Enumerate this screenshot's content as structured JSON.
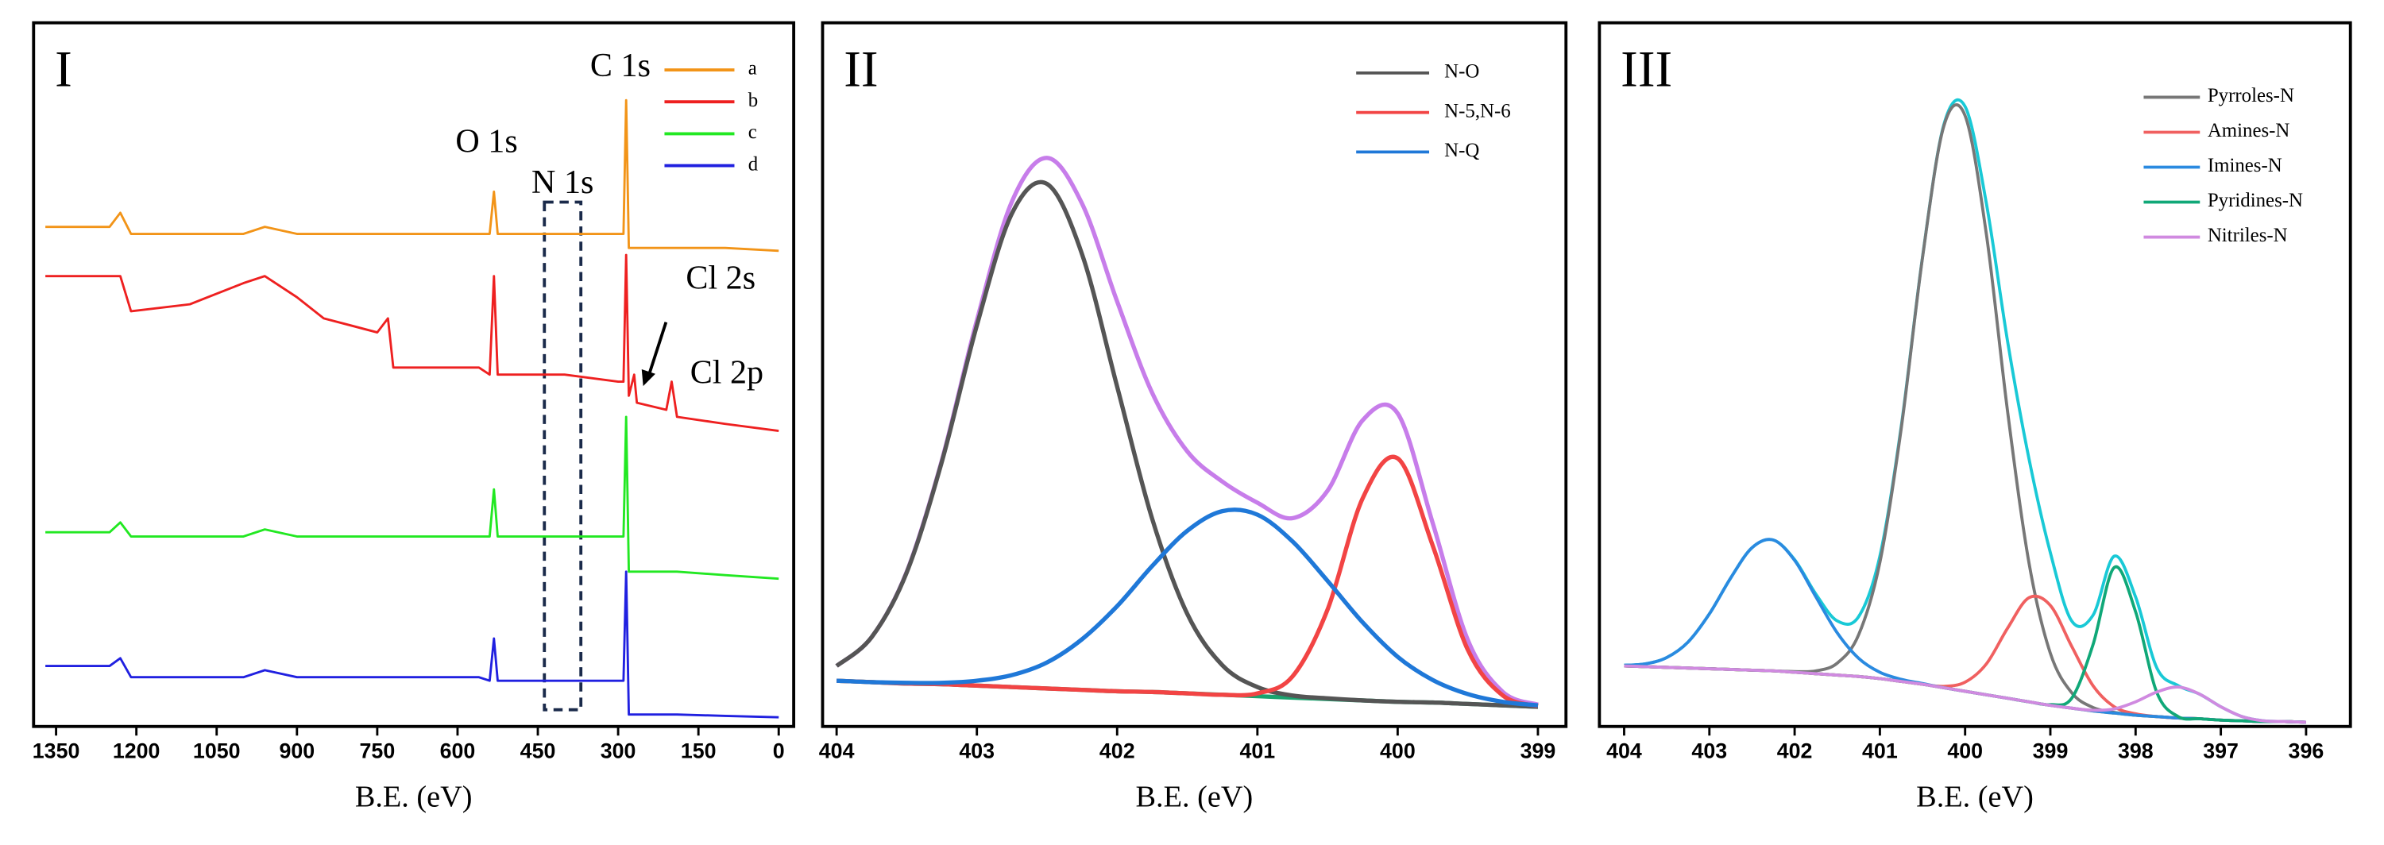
{
  "chart_data": [
    {
      "type": "line",
      "label": "I",
      "xlabel": "B.E. (eV)",
      "annotations": [
        "C 1s",
        "O 1s",
        "N 1s",
        "Cl 2s",
        "Cl 2p"
      ],
      "xlim": [
        1392,
        -28
      ],
      "xticks": [
        1350,
        1200,
        1050,
        900,
        750,
        600,
        450,
        300,
        150,
        0
      ],
      "ylim": [
        0,
        100
      ],
      "x": [
        1370,
        1250,
        1230,
        1210,
        1100,
        1000,
        960,
        900,
        850,
        800,
        750,
        730,
        720,
        650,
        560,
        540,
        532,
        525,
        400,
        300,
        290,
        285,
        280,
        270,
        265,
        210,
        200,
        190,
        100,
        0
      ],
      "series": [
        {
          "name": "a",
          "color": "#f29418",
          "values": [
            71,
            71,
            73,
            70,
            70,
            70,
            71,
            70,
            70,
            70,
            70,
            70,
            70,
            70,
            70,
            70,
            76,
            70,
            70,
            70,
            70,
            89,
            68,
            68,
            68,
            68,
            68,
            68,
            68,
            67.6
          ]
        },
        {
          "name": "b",
          "color": "#ee2020",
          "values": [
            64,
            64,
            64,
            59,
            60,
            63,
            64,
            61,
            58,
            57,
            56,
            58,
            51,
            51,
            51,
            50,
            64,
            50,
            50,
            49,
            49,
            67,
            47,
            50,
            46,
            45,
            49,
            44,
            43,
            42
          ]
        },
        {
          "name": "c",
          "color": "#22e822",
          "values": [
            27.6,
            27.6,
            29,
            27,
            27,
            27,
            28,
            27,
            27,
            27,
            27,
            27,
            27,
            27,
            27,
            27,
            33.7,
            27,
            27,
            27,
            27,
            44,
            22,
            22,
            22,
            22,
            22,
            22,
            21.5,
            21
          ]
        },
        {
          "name": "d",
          "color": "#2020e0",
          "values": [
            8.6,
            8.6,
            9.7,
            7,
            7,
            7,
            8,
            7,
            7,
            7,
            7,
            7,
            7,
            7,
            7,
            6.5,
            12.5,
            6.5,
            6.5,
            6.5,
            6.5,
            22,
            1.7,
            1.7,
            1.7,
            1.7,
            1.7,
            1.7,
            1.5,
            1.3
          ]
        }
      ]
    },
    {
      "type": "line",
      "label": "II",
      "xlabel": "B.E. (eV)",
      "xlim": [
        404.1,
        398.8
      ],
      "xticks": [
        404,
        403,
        402,
        401,
        400,
        399
      ],
      "ylim": [
        0,
        100
      ],
      "x": [
        404,
        403.75,
        403.5,
        403.25,
        403,
        402.75,
        402.5,
        402.25,
        402,
        401.75,
        401.5,
        401.25,
        401,
        400.75,
        400.5,
        400.25,
        400,
        399.75,
        399.5,
        399.25,
        399
      ],
      "series": [
        {
          "color": "#c77dea",
          "values": [
            8.6,
            12.7,
            22.0,
            37.8,
            57.7,
            74.6,
            80.8,
            74.3,
            60.4,
            47.4,
            39.1,
            34.8,
            31.8,
            29.6,
            33.5,
            43.5,
            44.5,
            28.9,
            12.3,
            4.9,
            3.1
          ]
        },
        {
          "color": "#1aa36e",
          "values": [
            6.5,
            6.3,
            6.1,
            6.0,
            5.8,
            5.6,
            5.4,
            5.2,
            5.0,
            4.9,
            4.7,
            4.5,
            4.3,
            4.1,
            3.9,
            3.7,
            3.5,
            3.4,
            3.2,
            3.0,
            2.8
          ]
        },
        {
          "name": "N-O",
          "color": "#555555",
          "values": [
            8.6,
            12.7,
            21.9,
            37.6,
            57.0,
            72.9,
            77.1,
            67.1,
            48.3,
            29.5,
            16.0,
            8.7,
            5.6,
            4.4,
            4.0,
            3.7,
            3.5,
            3.4,
            3.2,
            3.0,
            2.8
          ]
        },
        {
          "name": "N-5,N-6",
          "color": "#f24444",
          "values": [
            6.5,
            6.3,
            6.1,
            6.0,
            5.8,
            5.6,
            5.4,
            5.2,
            5.0,
            4.9,
            4.7,
            4.5,
            4.7,
            7.1,
            16.6,
            32.4,
            38.1,
            25.7,
            10.9,
            4.4,
            2.9
          ]
        },
        {
          "name": "N-Q",
          "color": "#1f78d8",
          "values": [
            6.5,
            6.3,
            6.2,
            6.2,
            6.5,
            7.3,
            9.1,
            12.4,
            17.1,
            22.8,
            27.8,
            30.6,
            30.1,
            26.3,
            20.7,
            14.8,
            9.9,
            6.6,
            4.6,
            3.5,
            3.0
          ]
        }
      ]
    },
    {
      "type": "line",
      "label": "III",
      "xlabel": "B.E. (eV)",
      "xlim": [
        404.29,
        395.48
      ],
      "xticks": [
        404,
        403,
        402,
        401,
        400,
        399,
        398,
        397,
        396
      ],
      "ylim": [
        0,
        100
      ],
      "x": [
        404,
        403.75,
        403.5,
        403.25,
        403,
        402.75,
        402.5,
        402.25,
        402,
        401.75,
        401.5,
        401.25,
        401,
        400.75,
        400.5,
        400.25,
        400,
        399.75,
        399.5,
        399.25,
        399,
        398.75,
        398.5,
        398.25,
        398,
        397.75,
        397.5,
        397.25,
        397,
        396.75,
        396.5,
        396.25,
        396
      ],
      "series": [
        {
          "color": "#19c9d6",
          "values": [
            8.7,
            8.9,
            9.8,
            12.0,
            16.0,
            21.1,
            25.4,
            26.5,
            23.7,
            18.8,
            15.0,
            15.6,
            24.2,
            42.6,
            66.7,
            85.5,
            88.1,
            74.3,
            54.6,
            38.0,
            24.7,
            15.0,
            15.8,
            24.2,
            18.4,
            8.3,
            5.8,
            4.6,
            2.8,
            1.4,
            0.8,
            0.7,
            0.6
          ]
        },
        {
          "color": "#e0a030",
          "values": [
            8.6,
            8.5,
            8.4,
            8.3,
            8.2,
            8.1,
            8.0,
            7.9,
            7.7,
            7.5,
            7.3,
            7.1,
            6.8,
            6.4,
            6.0,
            5.5,
            5.0,
            4.5,
            4.0,
            3.5,
            3.0,
            2.6,
            2.2,
            1.9,
            1.6,
            1.4,
            1.2,
            1.1,
            0.9,
            0.8,
            0.7,
            0.7,
            0.6
          ]
        },
        {
          "name": "Pyrroles-N",
          "color": "#777777",
          "values": [
            8.6,
            8.5,
            8.4,
            8.3,
            8.2,
            8.1,
            8.0,
            7.9,
            7.8,
            7.9,
            9.0,
            13.0,
            23.3,
            42.3,
            66.6,
            85.3,
            86.8,
            69.9,
            44.6,
            23.2,
            10.4,
            4.8,
            2.7,
            2.0,
            1.6,
            1.4,
            1.2,
            1.1,
            0.9,
            0.8,
            0.7,
            0.7,
            0.6
          ]
        },
        {
          "name": "Amines-N",
          "color": "#f06060",
          "values": [
            8.6,
            8.5,
            8.4,
            8.3,
            8.2,
            8.1,
            8.0,
            7.9,
            7.7,
            7.5,
            7.3,
            7.1,
            6.8,
            6.4,
            6.0,
            5.7,
            6.3,
            8.9,
            14.0,
            18.3,
            17.2,
            11.4,
            5.8,
            2.8,
            1.8,
            1.4,
            1.2,
            1.1,
            0.9,
            0.8,
            0.7,
            0.7,
            0.6
          ]
        },
        {
          "name": "Imines-N",
          "color": "#2a8ae0",
          "values": [
            8.7,
            8.9,
            9.8,
            12.0,
            16.0,
            21.1,
            25.4,
            26.5,
            23.6,
            18.4,
            13.3,
            9.7,
            7.7,
            6.7,
            6.1,
            5.5,
            5.0,
            4.5,
            4.0,
            3.5,
            3.0,
            2.6,
            2.2,
            1.9,
            1.6,
            1.4,
            1.2,
            1.1,
            0.9,
            0.8,
            0.7,
            0.7,
            0.6
          ]
        },
        {
          "name": "Pyridines-N",
          "color": "#10a878",
          "values": [
            8.6,
            8.5,
            8.4,
            8.3,
            8.2,
            8.1,
            8.0,
            7.9,
            7.7,
            7.5,
            7.3,
            7.1,
            6.8,
            6.4,
            6.0,
            5.5,
            5.0,
            4.5,
            4.0,
            3.5,
            3.1,
            4.0,
            11.6,
            22.6,
            16.3,
            4.8,
            1.4,
            1.1,
            0.9,
            0.8,
            0.7,
            0.7,
            0.6
          ]
        },
        {
          "name": "Nitriles-N",
          "color": "#d08ae0",
          "values": [
            8.6,
            8.5,
            8.4,
            8.3,
            8.2,
            8.1,
            8.0,
            7.9,
            7.7,
            7.5,
            7.3,
            7.1,
            6.8,
            6.4,
            6.0,
            5.5,
            5.0,
            4.5,
            4.0,
            3.5,
            3.0,
            2.6,
            2.3,
            2.5,
            3.5,
            4.9,
            5.6,
            4.6,
            2.8,
            1.4,
            0.8,
            0.7,
            0.6
          ]
        }
      ]
    }
  ]
}
